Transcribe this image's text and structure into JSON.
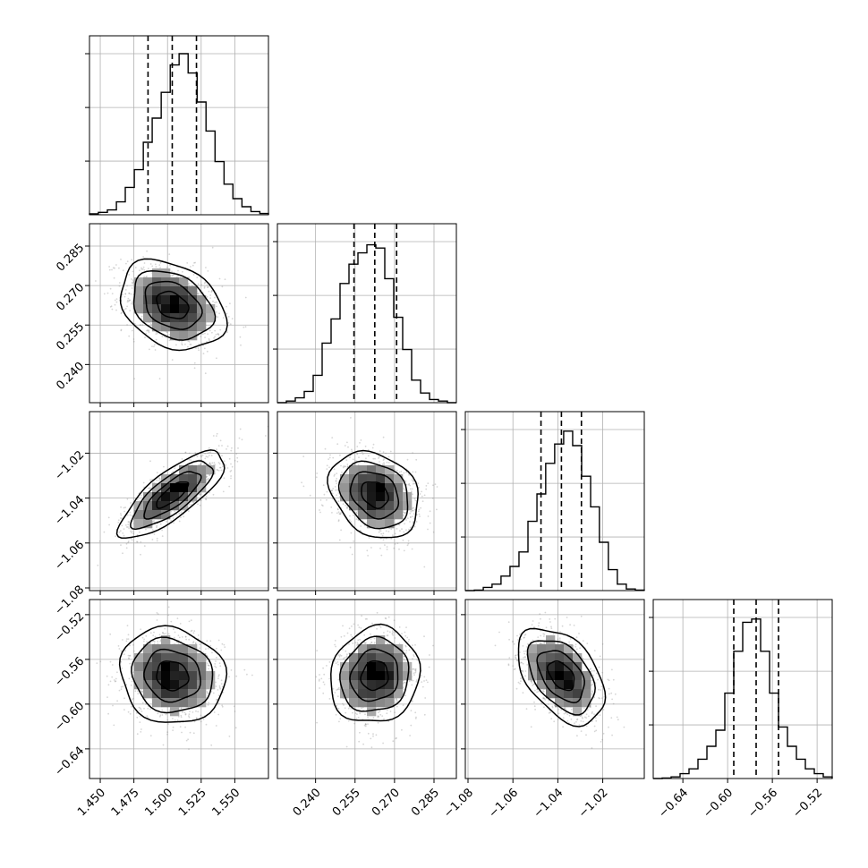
{
  "chart_data": {
    "type": "corner",
    "title": "",
    "grid": true,
    "parameters": [
      {
        "range": [
          1.442,
          1.575
        ],
        "ticks": [
          1.45,
          1.475,
          1.5,
          1.525,
          1.55
        ],
        "tick_labels": [
          "1.450",
          "1.475",
          "1.500",
          "1.525",
          "1.550"
        ],
        "quantiles": [
          1.4855,
          1.5035,
          1.5215
        ],
        "hist_bin_edges": [
          1.442,
          1.4486,
          1.4553,
          1.462,
          1.4686,
          1.4753,
          1.482,
          1.4886,
          1.4953,
          1.502,
          1.5086,
          1.5153,
          1.522,
          1.5286,
          1.5353,
          1.542,
          1.5486,
          1.5553,
          1.562,
          1.5686,
          1.575
        ],
        "hist_counts": [
          0.006,
          0.015,
          0.03,
          0.08,
          0.17,
          0.28,
          0.45,
          0.6,
          0.76,
          0.93,
          1.0,
          0.88,
          0.7,
          0.52,
          0.33,
          0.19,
          0.1,
          0.05,
          0.02,
          0.008
        ]
      },
      {
        "range": [
          0.2255,
          0.2935
        ],
        "ticks": [
          0.24,
          0.255,
          0.27,
          0.285
        ],
        "tick_labels": [
          "0.240",
          "0.255",
          "0.270",
          "0.285"
        ],
        "quantiles": [
          0.2546,
          0.2625,
          0.2708
        ],
        "hist_bin_edges": [
          0.2255,
          0.2289,
          0.2323,
          0.2357,
          0.2391,
          0.2425,
          0.2459,
          0.2493,
          0.2527,
          0.2561,
          0.2595,
          0.2629,
          0.2663,
          0.2697,
          0.2731,
          0.2765,
          0.2799,
          0.2833,
          0.2867,
          0.2901,
          0.2935
        ],
        "hist_counts": [
          0.0,
          0.01,
          0.03,
          0.07,
          0.17,
          0.37,
          0.52,
          0.74,
          0.86,
          0.93,
          0.98,
          0.96,
          0.77,
          0.53,
          0.33,
          0.14,
          0.06,
          0.02,
          0.01,
          0.0
        ]
      },
      {
        "range": [
          -1.0812,
          -1.0015
        ],
        "ticks": [
          -1.08,
          -1.06,
          -1.04,
          -1.02
        ],
        "tick_labels": [
          "−1.08",
          "−1.06",
          "−1.04",
          "−1.02"
        ],
        "quantiles": [
          -1.0475,
          -1.0384,
          -1.0295
        ],
        "hist_bin_edges": [
          -1.0812,
          -1.0772,
          -1.0732,
          -1.0693,
          -1.0653,
          -1.0613,
          -1.0573,
          -1.0533,
          -1.0493,
          -1.0454,
          -1.0414,
          -1.0374,
          -1.0334,
          -1.0294,
          -1.0254,
          -1.0215,
          -1.0175,
          -1.0135,
          -1.0095,
          -1.0055,
          -1.0015
        ],
        "hist_counts": [
          0.0,
          0.003,
          0.02,
          0.04,
          0.09,
          0.15,
          0.24,
          0.43,
          0.6,
          0.79,
          0.91,
          0.99,
          0.9,
          0.71,
          0.52,
          0.3,
          0.13,
          0.04,
          0.01,
          0.003
        ]
      },
      {
        "range": [
          -0.6665,
          -0.5065
        ],
        "ticks": [
          -0.64,
          -0.6,
          -0.56,
          -0.52
        ],
        "tick_labels": [
          "−0.64",
          "−0.60",
          "−0.56",
          "−0.52"
        ],
        "quantiles": [
          -0.5945,
          -0.5745,
          -0.5545
        ],
        "hist_bin_edges": [
          -0.6665,
          -0.6585,
          -0.6505,
          -0.6425,
          -0.6345,
          -0.6265,
          -0.6185,
          -0.6105,
          -0.6025,
          -0.5945,
          -0.5865,
          -0.5785,
          -0.5705,
          -0.5625,
          -0.5545,
          -0.5465,
          -0.5385,
          -0.5305,
          -0.5225,
          -0.5145,
          -0.5065
        ],
        "hist_counts": [
          0.0,
          0.003,
          0.01,
          0.03,
          0.06,
          0.12,
          0.2,
          0.3,
          0.53,
          0.79,
          0.97,
          0.99,
          0.79,
          0.53,
          0.32,
          0.2,
          0.12,
          0.06,
          0.03,
          0.01
        ]
      }
    ],
    "pairs": [
      {
        "x": 0,
        "y": 1,
        "center": [
          1.5035,
          0.2625
        ],
        "sigma": [
          0.0182,
          0.0079
        ],
        "corr": -0.3
      },
      {
        "x": 0,
        "y": 2,
        "center": [
          1.5035,
          -1.0384
        ],
        "sigma": [
          0.0182,
          0.009
        ],
        "corr": 0.78
      },
      {
        "x": 1,
        "y": 2,
        "center": [
          0.2625,
          -1.0384
        ],
        "sigma": [
          0.0079,
          0.009
        ],
        "corr": -0.25
      },
      {
        "x": 0,
        "y": 3,
        "center": [
          1.5035,
          -0.5745
        ],
        "sigma": [
          0.0182,
          0.02
        ],
        "corr": -0.1
      },
      {
        "x": 1,
        "y": 3,
        "center": [
          0.2625,
          -0.5745
        ],
        "sigma": [
          0.0079,
          0.02
        ],
        "corr": 0.1
      },
      {
        "x": 2,
        "y": 3,
        "center": [
          -1.0384,
          -0.5745
        ],
        "sigma": [
          0.009,
          0.02
        ],
        "corr": -0.45
      }
    ],
    "contour_levels_sigma": [
      0.5,
      1.0,
      1.5,
      2.0
    ]
  }
}
